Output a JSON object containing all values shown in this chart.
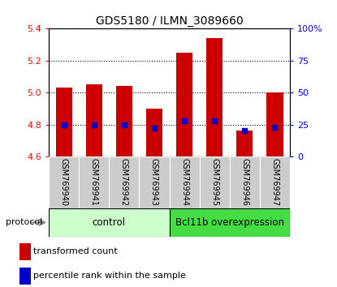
{
  "title": "GDS5180 / ILMN_3089660",
  "samples": [
    "GSM769940",
    "GSM769941",
    "GSM769942",
    "GSM769943",
    "GSM769944",
    "GSM769945",
    "GSM769946",
    "GSM769947"
  ],
  "bar_values": [
    5.03,
    5.05,
    5.04,
    4.9,
    5.25,
    5.34,
    4.76,
    5.0
  ],
  "percentile_values": [
    25,
    25,
    25,
    22,
    28,
    28,
    20,
    23
  ],
  "bar_bottom": 4.6,
  "ylim": [
    4.6,
    5.4
  ],
  "right_ylim": [
    0,
    100
  ],
  "right_yticks": [
    0,
    25,
    50,
    75,
    100
  ],
  "right_yticklabels": [
    "0",
    "25",
    "50",
    "75",
    "100%"
  ],
  "left_yticks": [
    4.6,
    4.8,
    5.0,
    5.2,
    5.4
  ],
  "bar_color": "#cc0000",
  "percentile_color": "#0000cc",
  "protocol_groups": [
    {
      "label": "control",
      "start": 0,
      "end": 4,
      "color": "#ccffcc"
    },
    {
      "label": "Bcl11b overexpression",
      "start": 4,
      "end": 8,
      "color": "#44dd44"
    }
  ],
  "protocol_label": "protocol",
  "legend_items": [
    {
      "label": "transformed count",
      "color": "#cc0000"
    },
    {
      "label": "percentile rank within the sample",
      "color": "#0000cc"
    }
  ],
  "bg_color": "#ffffff",
  "label_area_color": "#cccccc",
  "bar_width": 0.55
}
